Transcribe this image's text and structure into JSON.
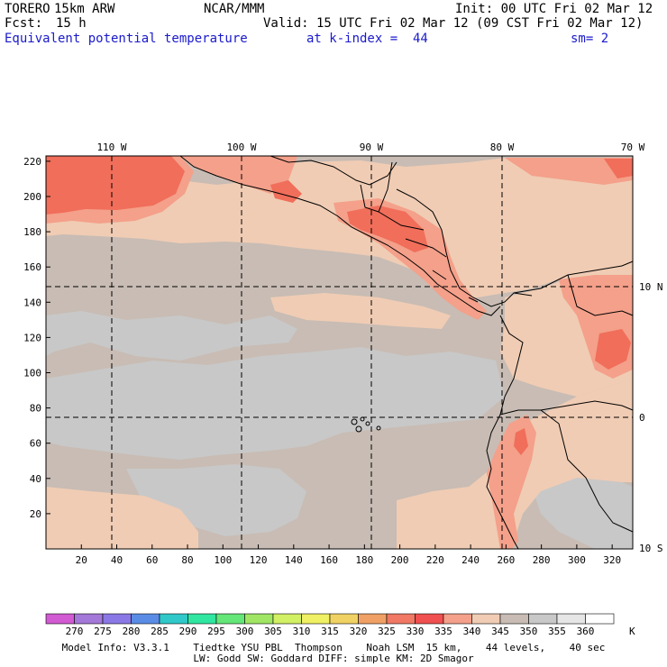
{
  "header": {
    "model": "TORERO",
    "resolution": "15km ARW",
    "center": "NCAR/MMM",
    "init": "Init: 00 UTC Fri 02 Mar 12",
    "fcst_label": "Fcst:",
    "fcst_hours": "15 h",
    "valid": "Valid: 15 UTC Fri 02 Mar 12 (09 CST Fri 02 Mar 12)",
    "field": "Equivalent potential temperature",
    "level": "at k-index =  44",
    "smoothing": "sm= 2"
  },
  "map": {
    "lon_labels": [
      "110 W",
      "100 W",
      "90 W",
      "80 W",
      "70 W"
    ],
    "lat_labels": [
      "10 N",
      "0",
      "10 S"
    ],
    "x_ticks": [
      "20",
      "40",
      "60",
      "80",
      "100",
      "120",
      "140",
      "160",
      "180",
      "200",
      "220",
      "240",
      "260",
      "280",
      "300",
      "320"
    ],
    "y_ticks": [
      "20",
      "40",
      "60",
      "80",
      "100",
      "120",
      "140",
      "160",
      "180",
      "200",
      "220"
    ],
    "colors": {
      "level_345_350": "#c8bcb4",
      "level_350_355": "#c8c8c8",
      "level_340_345": "#f0ccb4",
      "level_335_340": "#f4a08a",
      "level_330_335": "#f06e5a",
      "level_325_330": "#e85048",
      "coast": "#000000",
      "grid": "#000000"
    }
  },
  "legend": {
    "unit": "K",
    "labels": [
      "270",
      "275",
      "280",
      "285",
      "290",
      "295",
      "300",
      "305",
      "310",
      "315",
      "320",
      "325",
      "330",
      "335",
      "340",
      "345",
      "350",
      "355",
      "360"
    ],
    "colors": [
      "#d25ad2",
      "#a478d8",
      "#8a78e6",
      "#5a8ce6",
      "#30c8c8",
      "#30e6a0",
      "#64e678",
      "#a0e664",
      "#d2f064",
      "#f0f064",
      "#f0d264",
      "#f0a064",
      "#f07864",
      "#f05050",
      "#f4a08a",
      "#f0ccb4",
      "#c8bcb4",
      "#c8c8c8",
      "#e6e6e6",
      "#ffffff"
    ]
  },
  "footer": {
    "line1": "Model Info: V3.3.1    Tiedtke YSU PBL  Thompson    Noah LSM  15 km,    44 levels,    40 sec",
    "line2": "LW: Godd SW: Goddard DIFF: simple KM: 2D Smagor"
  }
}
